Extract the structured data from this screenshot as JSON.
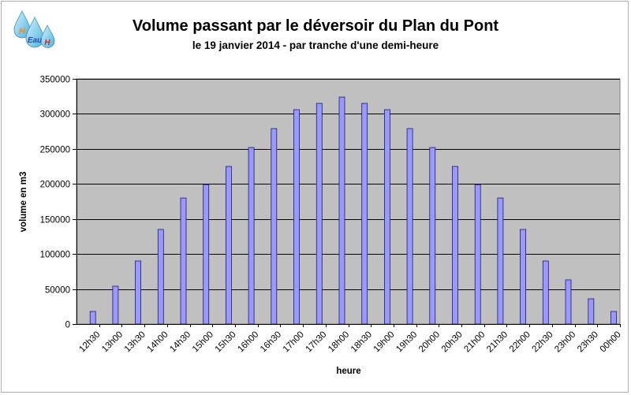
{
  "logo": {
    "letters": [
      "H",
      "Eau",
      "H"
    ]
  },
  "colors": {
    "plot_bg": "#c0c0c0",
    "bar_fill": "#9999ff",
    "bar_stroke": "#1a1a66",
    "grid": "#000000"
  },
  "chart_data": {
    "type": "bar",
    "title": "Volume passant par le déversoir du Plan du Pont",
    "subtitle": "le 19 janvier 2014 - par tranche d'une demi-heure",
    "xlabel": "heure",
    "ylabel": "volume en m3",
    "ylim": [
      0,
      350000
    ],
    "yticks": [
      0,
      50000,
      100000,
      150000,
      200000,
      250000,
      300000,
      350000
    ],
    "grid": true,
    "categories": [
      "12h30",
      "13h00",
      "13h30",
      "14h00",
      "14h30",
      "15h00",
      "15h30",
      "16h00",
      "16h30",
      "17h00",
      "17h30",
      "18h00",
      "18h30",
      "19h00",
      "19h30",
      "20h00",
      "20h30",
      "21h00",
      "21h30",
      "22h00",
      "22h30",
      "23h00",
      "23h30",
      "00h00"
    ],
    "values": [
      18000,
      54000,
      90000,
      135000,
      180000,
      199000,
      225000,
      252000,
      279000,
      306000,
      315000,
      324000,
      315000,
      306000,
      279000,
      252000,
      225000,
      199000,
      180000,
      135000,
      90000,
      63000,
      36000,
      18000
    ]
  }
}
